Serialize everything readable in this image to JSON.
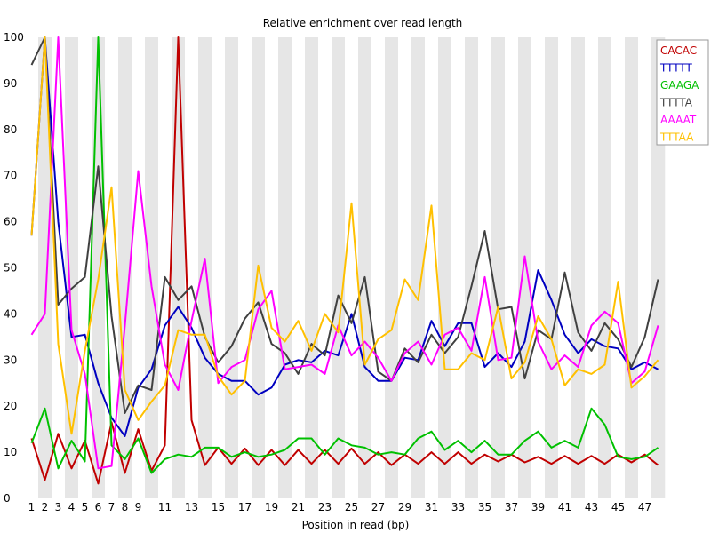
{
  "chart_data": {
    "type": "line",
    "title": "Relative enrichment over read length",
    "xlabel": "Position in read (bp)",
    "ylabel": "",
    "x": [
      1,
      2,
      3,
      4,
      5,
      6,
      7,
      8,
      9,
      10,
      11,
      12,
      13,
      14,
      15,
      16,
      17,
      18,
      19,
      20,
      21,
      22,
      23,
      24,
      25,
      26,
      27,
      28,
      29,
      30,
      31,
      32,
      33,
      34,
      35,
      36,
      37,
      38,
      39,
      40,
      41,
      42,
      43,
      44,
      45,
      46,
      47,
      48
    ],
    "x_tick_labels": [
      "1",
      "2",
      "3",
      "4",
      "5",
      "6",
      "7",
      "8",
      "9",
      "11",
      "13",
      "15",
      "17",
      "19",
      "21",
      "23",
      "25",
      "27",
      "29",
      "31",
      "33",
      "35",
      "37",
      "39",
      "41",
      "43",
      "45",
      "47"
    ],
    "y_ticks": [
      0,
      10,
      20,
      30,
      40,
      50,
      60,
      70,
      80,
      90,
      100
    ],
    "ylim": [
      0,
      100
    ],
    "grid": "alternating vertical bands",
    "legend_position": "top-right",
    "series": [
      {
        "name": "CACAC",
        "color": "#c00000",
        "values": [
          13,
          4,
          14,
          6.5,
          12.5,
          3.2,
          16.5,
          5.5,
          15,
          6,
          11.5,
          100,
          17,
          7.2,
          11,
          7.5,
          10.8,
          7.2,
          10.5,
          7.2,
          10.5,
          7.5,
          10.5,
          7.5,
          10.8,
          7.5,
          10,
          7.2,
          9.5,
          7.5,
          10,
          7.5,
          10,
          7.5,
          9.5,
          8,
          9.5,
          7.8,
          9,
          7.5,
          9.2,
          7.5,
          9.2,
          7.5,
          9.5,
          7.8,
          9.5,
          7.2
        ]
      },
      {
        "name": "TTTTT",
        "color": "#0000c0",
        "values": [
          57,
          100,
          60,
          35,
          35.5,
          25,
          17.5,
          13.5,
          24,
          28,
          37.5,
          41.5,
          37,
          30.5,
          27,
          25.5,
          25.5,
          22.5,
          24,
          29,
          30,
          29.5,
          32,
          31,
          40,
          28.5,
          25.5,
          25.5,
          30.5,
          30,
          38.5,
          33,
          38,
          38,
          28.5,
          31.5,
          28.5,
          34,
          49.5,
          43,
          35.5,
          31.5,
          34.5,
          33,
          32.5,
          28,
          29.5,
          28
        ]
      },
      {
        "name": "GAAGA",
        "color": "#00c000",
        "values": [
          12,
          19.5,
          6.5,
          12.5,
          8,
          100,
          11.5,
          8.5,
          13,
          5.5,
          8.5,
          9.5,
          9,
          11,
          11,
          9,
          10,
          9,
          9.5,
          10.5,
          13,
          13,
          9.5,
          13,
          11.5,
          11,
          9.5,
          10,
          9.5,
          13,
          14.5,
          10.5,
          12.5,
          10,
          12.5,
          9.5,
          9.5,
          12.5,
          14.5,
          11,
          12.5,
          11,
          19.5,
          16,
          9,
          8.5,
          9,
          11
        ]
      },
      {
        "name": "TTTTA",
        "color": "#404040",
        "values": [
          94,
          100,
          42,
          45.5,
          48,
          72,
          39.5,
          18.5,
          24.5,
          23.5,
          48,
          43,
          46,
          35,
          29.5,
          33,
          39,
          42.5,
          33.5,
          31.5,
          27,
          33.5,
          31,
          44,
          38,
          48,
          27.5,
          25.5,
          32.5,
          29.5,
          35.5,
          31.5,
          35,
          46,
          58,
          41,
          41.5,
          26,
          36.5,
          34.5,
          49,
          36,
          32,
          38,
          34.5,
          28.5,
          35,
          47.5
        ]
      },
      {
        "name": "AAAAT",
        "color": "#ff00ff",
        "values": [
          35.5,
          40,
          100,
          36.5,
          27,
          6.5,
          7,
          37.5,
          71,
          46,
          29,
          23.5,
          38.5,
          52,
          25,
          28.5,
          30,
          41,
          45,
          28,
          28.5,
          29,
          27,
          37.5,
          31,
          34,
          30.5,
          25.5,
          31.5,
          34,
          29,
          35.5,
          37,
          32,
          48,
          30,
          30.5,
          52.5,
          34,
          28,
          31,
          28.5,
          37.5,
          40.5,
          38,
          25,
          27.5,
          37.5
        ]
      },
      {
        "name": "TTTAA",
        "color": "#ffc000",
        "values": [
          57,
          100,
          33.5,
          14,
          32,
          47.5,
          67.5,
          23.5,
          17,
          21,
          24.5,
          36.5,
          35.5,
          35.5,
          26.5,
          22.5,
          25.5,
          50.5,
          37,
          34,
          38.5,
          32,
          40,
          36,
          64,
          29,
          34.5,
          36.5,
          47.5,
          43,
          63.5,
          28,
          28,
          31.5,
          30,
          41.5,
          26,
          29.5,
          39.5,
          34.5,
          24.5,
          28,
          27,
          29,
          47,
          24,
          26.5,
          30
        ]
      }
    ]
  }
}
